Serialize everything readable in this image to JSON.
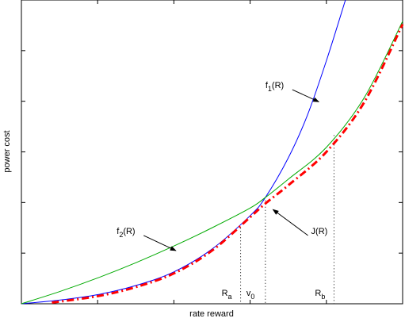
{
  "chart_data": {
    "type": "line",
    "title": "",
    "xlabel": "rate reward",
    "ylabel": "power cost",
    "xlim": [
      0,
      1
    ],
    "ylim": [
      0,
      1
    ],
    "grid": false,
    "series": [
      {
        "name": "f1(R)",
        "color": "#0000ff",
        "style": "solid",
        "x": [
          0,
          0.1,
          0.2,
          0.3,
          0.4,
          0.5,
          0.6,
          0.64,
          0.7,
          0.75,
          0.8,
          0.85
        ],
        "y": [
          0,
          0.012,
          0.03,
          0.06,
          0.105,
          0.18,
          0.29,
          0.35,
          0.48,
          0.62,
          0.8,
          1.0
        ]
      },
      {
        "name": "f2(R)",
        "color": "#00aa00",
        "style": "solid",
        "x": [
          0,
          0.1,
          0.2,
          0.3,
          0.4,
          0.5,
          0.6,
          0.64,
          0.7,
          0.8,
          0.9,
          1.0
        ],
        "y": [
          0,
          0.04,
          0.085,
          0.135,
          0.19,
          0.25,
          0.315,
          0.35,
          0.41,
          0.515,
          0.68,
          0.93
        ]
      },
      {
        "name": "J(R)",
        "color": "#ff0000",
        "style": "dash-dot",
        "x": [
          0.08,
          0.2,
          0.3,
          0.4,
          0.5,
          0.6,
          0.64,
          0.7,
          0.8,
          0.9,
          1.0
        ],
        "y": [
          0.004,
          0.025,
          0.055,
          0.1,
          0.175,
          0.285,
          0.33,
          0.39,
          0.5,
          0.665,
          0.92
        ]
      }
    ],
    "vlines": [
      {
        "label": "R",
        "subscript": "a",
        "x": 0.575,
        "y": 0.25
      },
      {
        "label": "v",
        "subscript": "0",
        "x": 0.64,
        "y": 0.34
      },
      {
        "label": "R",
        "subscript": "b",
        "x": 0.82,
        "y": 0.555
      }
    ],
    "annotations": [
      {
        "label": "f",
        "subscript": "1",
        "suffix": "(R)",
        "text_x": 0.64,
        "text_y": 0.71,
        "arrow_x": 0.78,
        "arrow_y": 0.665
      },
      {
        "label": "f",
        "subscript": "2",
        "suffix": "(R)",
        "text_x": 0.25,
        "text_y": 0.23,
        "arrow_x": 0.405,
        "arrow_y": 0.175
      },
      {
        "label": "J(R)",
        "subscript": "",
        "suffix": "",
        "text_x": 0.76,
        "text_y": 0.23,
        "arrow_x": 0.66,
        "arrow_y": 0.31
      }
    ]
  }
}
